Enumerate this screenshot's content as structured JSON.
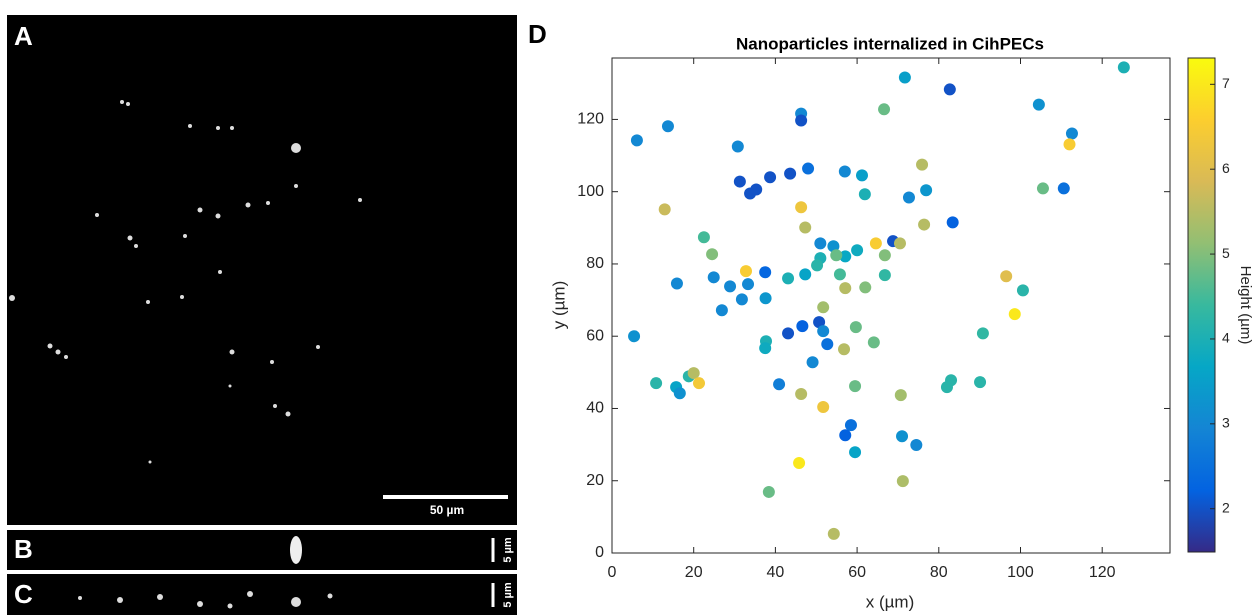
{
  "panels": {
    "A": {
      "label": "A",
      "scale_bar": "50 µm"
    },
    "B": {
      "label": "B",
      "scale_bar": "5 µm"
    },
    "C": {
      "label": "C",
      "scale_bar": "5 µm"
    },
    "D": {
      "label": "D"
    }
  },
  "chart_data": {
    "type": "scatter",
    "title": "Nanoparticles internalized in CihPECs",
    "x_label": "x (µm)",
    "y_label": "y (µm)",
    "x": [
      6.1,
      13.7,
      30.8,
      46.3,
      46.3,
      48,
      31.3,
      35.3,
      33.8,
      38.7,
      43.6,
      57,
      61.2,
      61.9,
      66.6,
      71.7,
      82.7,
      104.5,
      112.6,
      125.3,
      75.9,
      72.7,
      76.9,
      105.5,
      110.6,
      112,
      83.4,
      76.4,
      12.9,
      46.3,
      47.3,
      22.5,
      24.5,
      24.9,
      32.8,
      37.5,
      28.9,
      33.3,
      31.8,
      37.6,
      26.9,
      15.9,
      5.4,
      43.1,
      47.3,
      51,
      54.2,
      57.1,
      54.9,
      51,
      50.2,
      60,
      64.6,
      68.8,
      70.5,
      66.8,
      55.8,
      57.1,
      62,
      66.8,
      96.5,
      100.6,
      98.6,
      90.8,
      51.7,
      50.7,
      51.7,
      52.7,
      46.6,
      43.1,
      37.7,
      37.5,
      49.1,
      59.7,
      64.1,
      56.8,
      10.8,
      15.7,
      16.6,
      18.8,
      20,
      21.3,
      40.9,
      46.3,
      59.5,
      51.7,
      70.7,
      82,
      83,
      90.1,
      58.5,
      57.1,
      71,
      74.5,
      59.5,
      45.8,
      38.4,
      71.2,
      54.3
    ],
    "y": [
      114.2,
      118.1,
      112.5,
      121.6,
      119.7,
      106.4,
      102.8,
      100.6,
      99.5,
      104,
      105,
      105.6,
      104.5,
      99.3,
      122.8,
      131.6,
      128.3,
      124.1,
      116.1,
      134.4,
      107.5,
      98.4,
      100.4,
      100.9,
      100.9,
      113.1,
      91.5,
      90.9,
      95.1,
      95.7,
      90.1,
      87.4,
      82.7,
      76.3,
      78,
      77.7,
      73.8,
      74.4,
      70.2,
      70.5,
      67.2,
      74.6,
      60,
      76,
      77.1,
      85.7,
      84.9,
      82.1,
      82.4,
      81.6,
      79.6,
      83.8,
      85.7,
      86.3,
      85.7,
      82.4,
      77.1,
      73.3,
      73.5,
      76.9,
      76.6,
      72.7,
      66.1,
      60.8,
      68,
      63.9,
      61.4,
      57.8,
      62.8,
      60.8,
      58.6,
      56.7,
      52.8,
      62.5,
      58.3,
      56.4,
      47,
      45.9,
      44.2,
      48.9,
      49.8,
      47,
      46.7,
      44,
      46.2,
      40.4,
      43.7,
      45.9,
      47.8,
      47.3,
      35.4,
      32.6,
      32.3,
      29.9,
      27.9,
      24.9,
      16.9,
      19.9,
      5.3
    ],
    "height": [
      3,
      3,
      3,
      3,
      2,
      2.5,
      2,
      2,
      2,
      2,
      2,
      3,
      3.5,
      4,
      4.8,
      3.5,
      2,
      3.2,
      3,
      4,
      5.5,
      3,
      3.3,
      4.8,
      2.5,
      6.5,
      2.2,
      5.5,
      5.7,
      6.3,
      5.5,
      4.5,
      5,
      3,
      6.5,
      2.3,
      3,
      3,
      3,
      3.3,
      3,
      3,
      3.2,
      4,
      3.6,
      3,
      3.2,
      3.7,
      4.8,
      4,
      4.2,
      3.8,
      6.5,
      2,
      5.5,
      5,
      4.5,
      5.5,
      5,
      4.3,
      6,
      4.2,
      7,
      4.3,
      5.3,
      2,
      3,
      2.5,
      2.2,
      2,
      4,
      3.8,
      3,
      4.8,
      4.8,
      5.5,
      4.2,
      3.6,
      3.2,
      4.2,
      5.5,
      6.4,
      2.8,
      5.5,
      4.8,
      6.3,
      5.3,
      4.2,
      4.2,
      4.2,
      2.5,
      2.2,
      3.2,
      3,
      3.6,
      7,
      4.8,
      5.4,
      5.5
    ],
    "xlim": [
      0,
      136.6
    ],
    "ylim": [
      0,
      137
    ],
    "xticks": [
      0,
      20,
      40,
      60,
      80,
      100,
      120
    ],
    "yticks": [
      0,
      20,
      40,
      60,
      80,
      100,
      120
    ],
    "colorbar": {
      "label": "Height (µm)",
      "lim": [
        1.49,
        7.31
      ],
      "ticks": [
        2,
        3,
        4,
        5,
        6,
        7
      ]
    },
    "colormap": [
      "#352a87",
      "#0363e1",
      "#1485d4",
      "#06a7c6",
      "#38b99e",
      "#92bf73",
      "#d9ba56",
      "#fcce2e",
      "#f9fb0e"
    ]
  }
}
